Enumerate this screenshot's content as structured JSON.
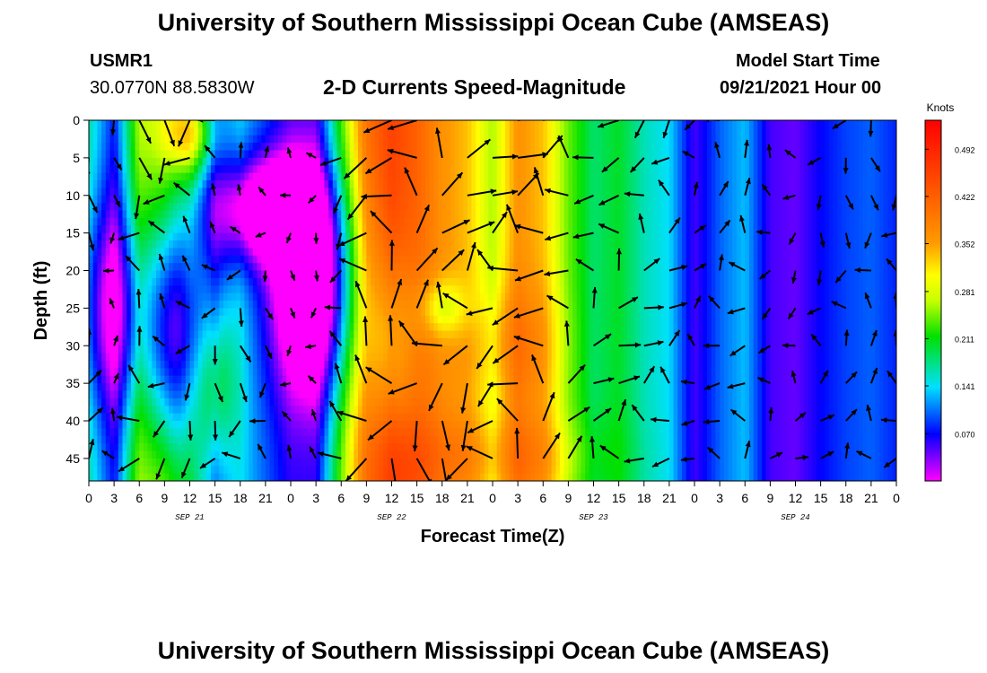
{
  "header": {
    "title_top": "University of Southern Mississippi Ocean Cube (AMSEAS)",
    "title_bottom": "University of Southern Mississippi Ocean Cube (AMSEAS)",
    "station": "USMR1",
    "coords": "30.0770N  88.5830W",
    "plot_title": "2-D Currents Speed-Magnitude",
    "model_label": "Model Start Time",
    "model_time": "09/21/2021 Hour 00"
  },
  "chart_data": {
    "type": "heatmap",
    "xlabel": "Forecast Time(Z)",
    "ylabel": "Depth (ft)",
    "x_tick_labels": [
      "0",
      "3",
      "6",
      "9",
      "12",
      "15",
      "18",
      "21",
      "0",
      "3",
      "6",
      "9",
      "12",
      "15",
      "18",
      "21",
      "0",
      "3",
      "6",
      "9",
      "12",
      "15",
      "18",
      "21",
      "0",
      "3",
      "6",
      "9",
      "12",
      "15",
      "18",
      "21",
      "0"
    ],
    "day_labels": [
      "SEP 21",
      "SEP 22",
      "SEP 23",
      "SEP 24"
    ],
    "y_tick_labels": [
      "0",
      "5",
      "10",
      "15",
      "20",
      "25",
      "30",
      "35",
      "40",
      "45"
    ],
    "y_range": [
      0,
      48
    ],
    "x_range_hours": [
      0,
      96
    ],
    "colorbar": {
      "unit": "Knots",
      "tick_labels": [
        "0.492",
        "0.422",
        "0.352",
        "0.281",
        "0.211",
        "0.141",
        "0.070"
      ],
      "range": [
        0.0,
        0.535
      ]
    },
    "arrows_shown": true
  }
}
